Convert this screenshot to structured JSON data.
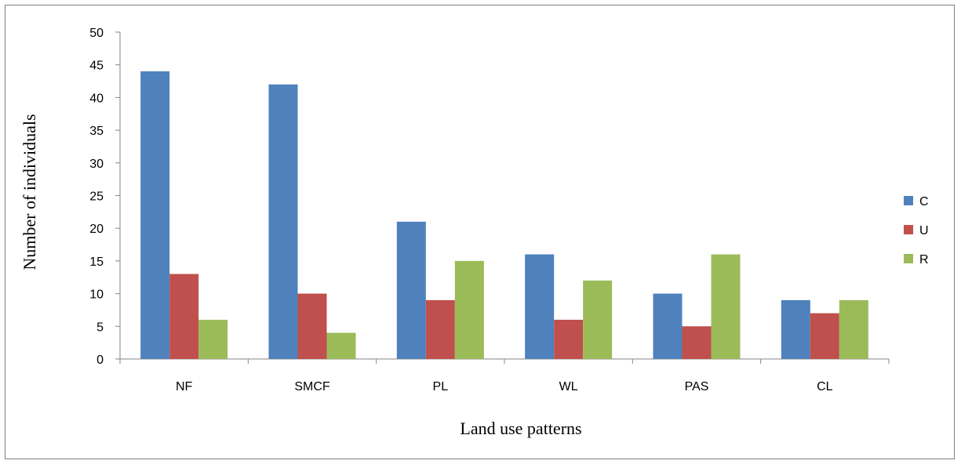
{
  "chart_data": {
    "type": "bar",
    "categories": [
      "NF",
      "SMCF",
      "PL",
      "WL",
      "PAS",
      "CL"
    ],
    "series": [
      {
        "name": "C",
        "color": "#4f81bd",
        "values": [
          44,
          42,
          21,
          16,
          10,
          9
        ]
      },
      {
        "name": "U",
        "color": "#c0504d",
        "values": [
          13,
          10,
          9,
          6,
          5,
          7
        ]
      },
      {
        "name": "R",
        "color": "#9bbb59",
        "values": [
          6,
          4,
          15,
          12,
          16,
          9
        ]
      }
    ],
    "title": "",
    "xlabel": "Land use patterns",
    "ylabel": "Number of individuals",
    "ylim": [
      0,
      50
    ],
    "yticks": [
      0,
      5,
      10,
      15,
      20,
      25,
      30,
      35,
      40,
      45,
      50
    ],
    "grid": false,
    "legend_position": "right"
  }
}
